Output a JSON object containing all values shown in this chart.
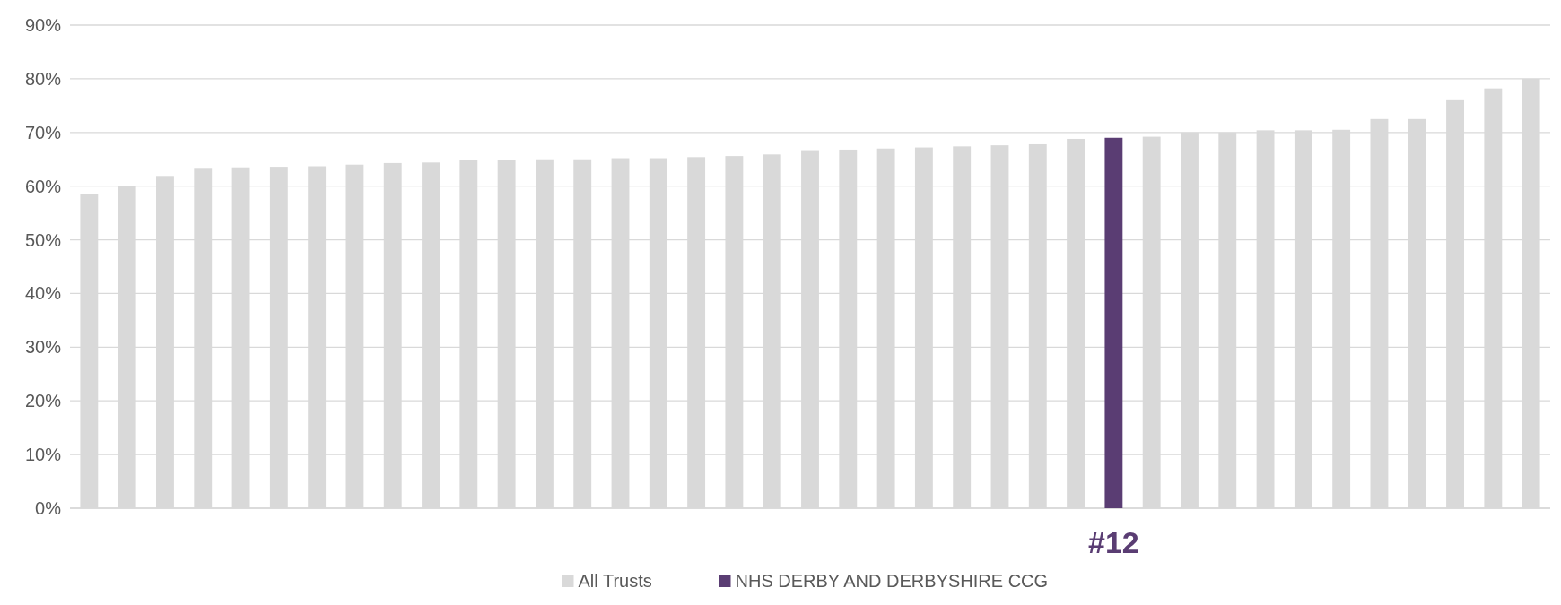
{
  "chart_data": {
    "type": "bar",
    "stacked": true,
    "categories": [
      null,
      null,
      null,
      null,
      null,
      null,
      null,
      null,
      null,
      null,
      null,
      null,
      null,
      null,
      null,
      null,
      null,
      null,
      null,
      null,
      null,
      null,
      null,
      null,
      null,
      null,
      null,
      null,
      null,
      null,
      null,
      null,
      null,
      null,
      null,
      null,
      null,
      null,
      null
    ],
    "series": [
      {
        "name": "All Trusts",
        "color": "#d9d9d9",
        "values": [
          58.6,
          60.0,
          61.9,
          63.4,
          63.5,
          63.6,
          63.7,
          64.0,
          64.3,
          64.4,
          64.8,
          64.9,
          65.0,
          65.0,
          65.2,
          65.2,
          65.4,
          65.6,
          65.9,
          66.7,
          66.8,
          67.0,
          67.2,
          67.4,
          67.6,
          67.8,
          68.8,
          null,
          69.2,
          70.0,
          70.0,
          70.4,
          70.4,
          70.5,
          72.5,
          72.5,
          76.0,
          78.2,
          80.0
        ]
      },
      {
        "name": "NHS DERBY AND DERBYSHIRE CCG",
        "color": "#5a3d73",
        "values": [
          null,
          null,
          null,
          null,
          null,
          null,
          null,
          null,
          null,
          null,
          null,
          null,
          null,
          null,
          null,
          null,
          null,
          null,
          null,
          null,
          null,
          null,
          null,
          null,
          null,
          null,
          null,
          69.0,
          null,
          null,
          null,
          null,
          null,
          null,
          null,
          null,
          null,
          null,
          null
        ]
      }
    ],
    "annotations": [
      "#12"
    ],
    "ylim": [
      0,
      90
    ],
    "yticks": [
      {
        "value": 0,
        "label": "0%"
      },
      {
        "value": 10,
        "label": "10%"
      },
      {
        "value": 20,
        "label": "20%"
      },
      {
        "value": 30,
        "label": "30%"
      },
      {
        "value": 40,
        "label": "40%"
      },
      {
        "value": 50,
        "label": "50%"
      },
      {
        "value": 60,
        "label": "60%"
      },
      {
        "value": 70,
        "label": "70%"
      },
      {
        "value": 80,
        "label": "80%"
      },
      {
        "value": 90,
        "label": "90%"
      }
    ],
    "grid": "y",
    "legend": "bottom"
  }
}
